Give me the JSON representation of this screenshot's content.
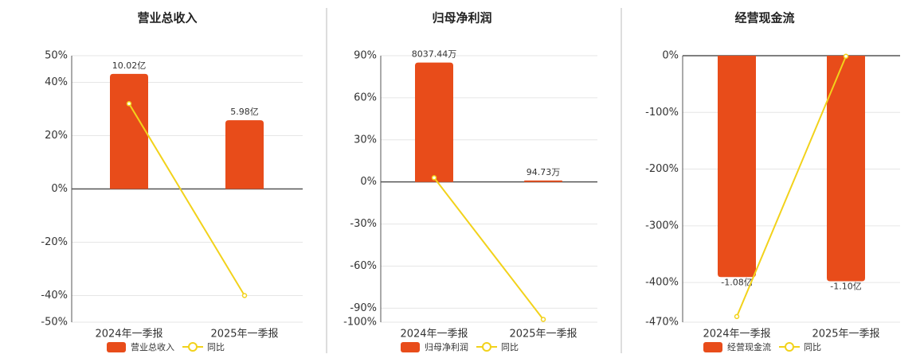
{
  "chart_data": [
    {
      "type": "bar",
      "title": "营业总收入",
      "categories": [
        "2024年一季报",
        "2025年一季报"
      ],
      "series": [
        {
          "name": "营业总收入",
          "color": "#e84c1a",
          "values": [
            10.02,
            5.98
          ],
          "value_labels": [
            "10.02亿",
            "5.98亿"
          ],
          "axis": "y2"
        },
        {
          "name": "同比",
          "color": "#f2d21b",
          "values": [
            32,
            -40
          ],
          "type": "line"
        }
      ],
      "ylim": [
        -50,
        50
      ],
      "yticks": [
        {
          "value": 50,
          "label": "50%"
        },
        {
          "value": 40,
          "label": "40%"
        },
        {
          "value": 20,
          "label": "20%"
        },
        {
          "value": 0,
          "label": "0%"
        },
        {
          "value": -20,
          "label": "-20%"
        },
        {
          "value": -40,
          "label": "-40%"
        },
        {
          "value": -50,
          "label": "-50%"
        }
      ],
      "y2lim": [
        -11.6,
        11.6
      ],
      "grid": true
    },
    {
      "type": "bar",
      "title": "归母净利润",
      "categories": [
        "2024年一季报",
        "2025年一季报"
      ],
      "series": [
        {
          "name": "归母净利润",
          "color": "#e84c1a",
          "values": [
            8037.44,
            94.73
          ],
          "value_labels": [
            "8037.44万",
            "94.73万"
          ],
          "axis": "y2"
        },
        {
          "name": "同比",
          "color": "#f2d21b",
          "values": [
            3,
            -98
          ],
          "type": "line"
        }
      ],
      "ylim": [
        -100,
        90
      ],
      "yticks": [
        {
          "value": 90,
          "label": "90%"
        },
        {
          "value": 60,
          "label": "60%"
        },
        {
          "value": 30,
          "label": "30%"
        },
        {
          "value": 0,
          "label": "0%"
        },
        {
          "value": -30,
          "label": "-30%"
        },
        {
          "value": -60,
          "label": "-60%"
        },
        {
          "value": -90,
          "label": "-90%"
        },
        {
          "value": -100,
          "label": "-100%"
        }
      ],
      "y2lim": [
        -9444,
        8500
      ],
      "grid": true
    },
    {
      "type": "bar",
      "title": "经营现金流",
      "categories": [
        "2024年一季报",
        "2025年一季报"
      ],
      "series": [
        {
          "name": "经营现金流",
          "color": "#e84c1a",
          "values": [
            -1.08,
            -1.1
          ],
          "value_labels": [
            "-1.08亿",
            "-1.10亿"
          ],
          "axis": "y2"
        },
        {
          "name": "同比",
          "color": "#f2d21b",
          "values": [
            -460,
            -1
          ],
          "type": "line"
        }
      ],
      "ylim": [
        -470,
        0
      ],
      "yticks": [
        {
          "value": 0,
          "label": "0%"
        },
        {
          "value": -100,
          "label": "-100%"
        },
        {
          "value": -200,
          "label": "-200%"
        },
        {
          "value": -300,
          "label": "-300%"
        },
        {
          "value": -400,
          "label": "-400%"
        },
        {
          "value": -470,
          "label": "-470%"
        }
      ],
      "y2lim": [
        -1.3,
        0
      ],
      "grid": true
    }
  ]
}
